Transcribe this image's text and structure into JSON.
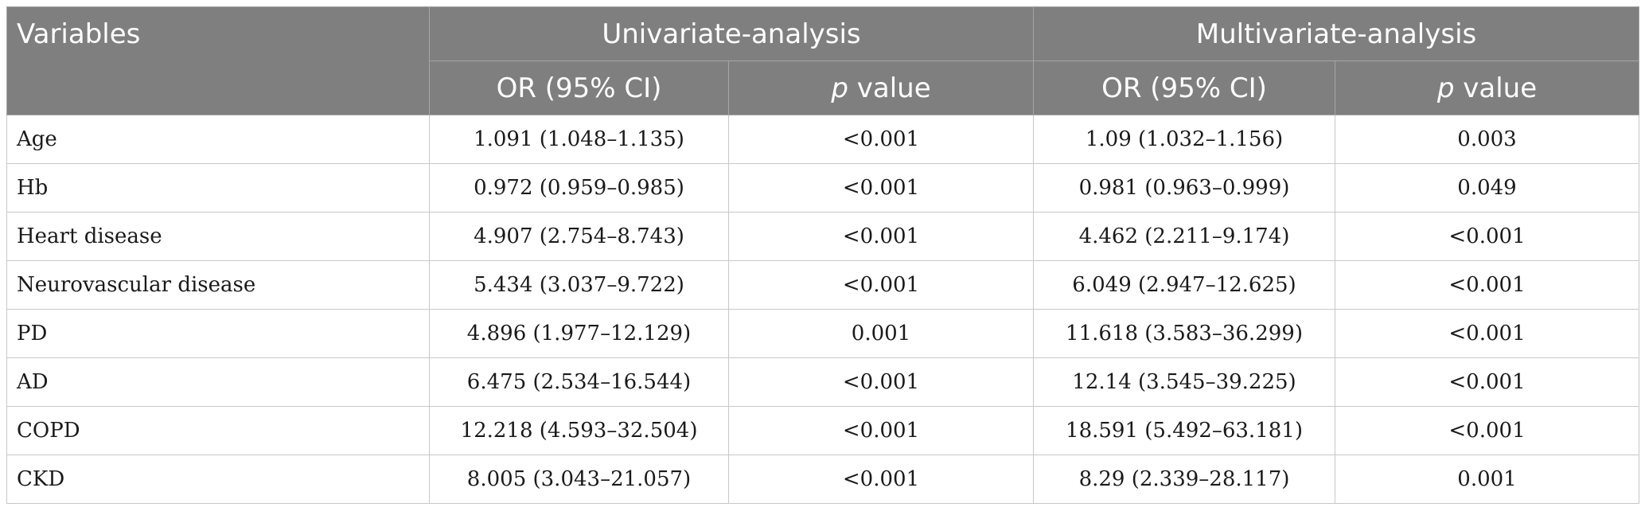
{
  "header": {
    "variables": "Variables",
    "univariate": "Univariate-analysis",
    "multivariate": "Multivariate-analysis",
    "or_ci": "OR (95% CI)",
    "p_italic": "p",
    "value_word": " value"
  },
  "rows": [
    {
      "variable": "Age",
      "uni_or": "1.091 (1.048–1.135)",
      "uni_p": "<0.001",
      "multi_or": "1.09 (1.032–1.156)",
      "multi_p": "0.003"
    },
    {
      "variable": "Hb",
      "uni_or": "0.972 (0.959–0.985)",
      "uni_p": "<0.001",
      "multi_or": "0.981 (0.963–0.999)",
      "multi_p": "0.049"
    },
    {
      "variable": "Heart disease",
      "uni_or": "4.907 (2.754–8.743)",
      "uni_p": "<0.001",
      "multi_or": "4.462 (2.211–9.174)",
      "multi_p": "<0.001"
    },
    {
      "variable": "Neurovascular disease",
      "uni_or": "5.434 (3.037–9.722)",
      "uni_p": "<0.001",
      "multi_or": "6.049 (2.947–12.625)",
      "multi_p": "<0.001"
    },
    {
      "variable": "PD",
      "uni_or": "4.896 (1.977–12.129)",
      "uni_p": "0.001",
      "multi_or": "11.618 (3.583–36.299)",
      "multi_p": "<0.001"
    },
    {
      "variable": "AD",
      "uni_or": "6.475 (2.534–16.544)",
      "uni_p": "<0.001",
      "multi_or": "12.14 (3.545–39.225)",
      "multi_p": "<0.001"
    },
    {
      "variable": "COPD",
      "uni_or": "12.218 (4.593–32.504)",
      "uni_p": "<0.001",
      "multi_or": "18.591 (5.492–63.181)",
      "multi_p": "<0.001"
    },
    {
      "variable": "CKD",
      "uni_or": "8.005 (3.043–21.057)",
      "uni_p": "<0.001",
      "multi_or": "8.29 (2.339–28.117)",
      "multi_p": "0.001"
    }
  ],
  "colors": {
    "header_bg": "#7f7f7f",
    "header_text": "#ffffff",
    "body_text": "#1a1a1a",
    "grid_line": "#c8c8c8"
  }
}
